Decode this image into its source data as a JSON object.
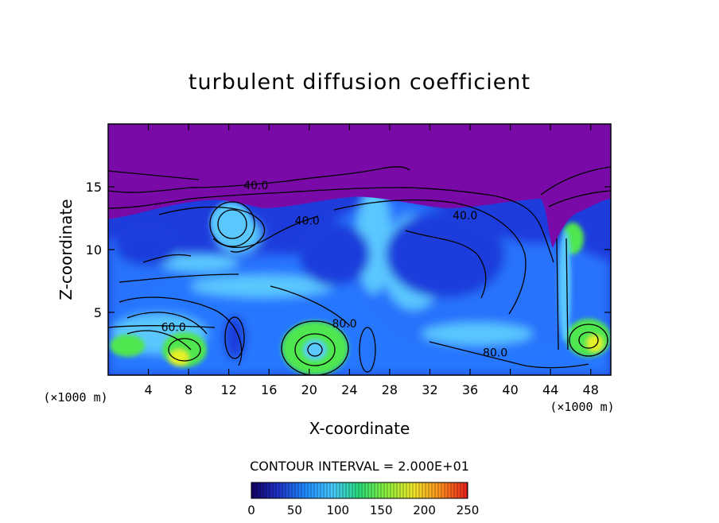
{
  "chart_data": {
    "type": "heatmap",
    "title": "turbulent diffusion coefficient",
    "xlabel": "X-coordinate",
    "ylabel": "Z-coordinate",
    "x_unit": "(×1000 m)",
    "x_unit_right": "(×1000 m)",
    "xlim": [
      0,
      50
    ],
    "ylim": [
      0,
      20
    ],
    "x_ticks": [
      4,
      8,
      12,
      16,
      20,
      24,
      28,
      32,
      36,
      40,
      44,
      48
    ],
    "y_ticks": [
      5,
      10,
      15
    ],
    "contour_interval_label": "CONTOUR INTERVAL = 2.000E+01",
    "contour_interval": 20,
    "contour_labels": [
      {
        "text": "40.0",
        "x": 14.7,
        "y": 14.8
      },
      {
        "text": "40.0",
        "x": 19.8,
        "y": 12.0
      },
      {
        "text": "40.0",
        "x": 35.5,
        "y": 12.4
      },
      {
        "text": "80.0",
        "x": 23.5,
        "y": 3.8
      },
      {
        "text": "80.0",
        "x": 38.5,
        "y": 1.5
      },
      {
        "text": "60.0",
        "x": 6.5,
        "y": 3.5
      }
    ],
    "colorbar": {
      "min": 0,
      "max": 250,
      "ticks": [
        0,
        50,
        100,
        150,
        200,
        250
      ],
      "colors": [
        "#140064",
        "#1e32c8",
        "#1e8cff",
        "#46c8ff",
        "#28dc78",
        "#8cf03c",
        "#f0e628",
        "#ff8c1e",
        "#e61e1e"
      ]
    },
    "field_colors": {
      "upper": "#7a0aa8",
      "low": "#1e3cdc",
      "mid": "#2878ff",
      "high": "#5ac8ff",
      "peak": "#50e650",
      "hot": "#e6f028"
    }
  }
}
